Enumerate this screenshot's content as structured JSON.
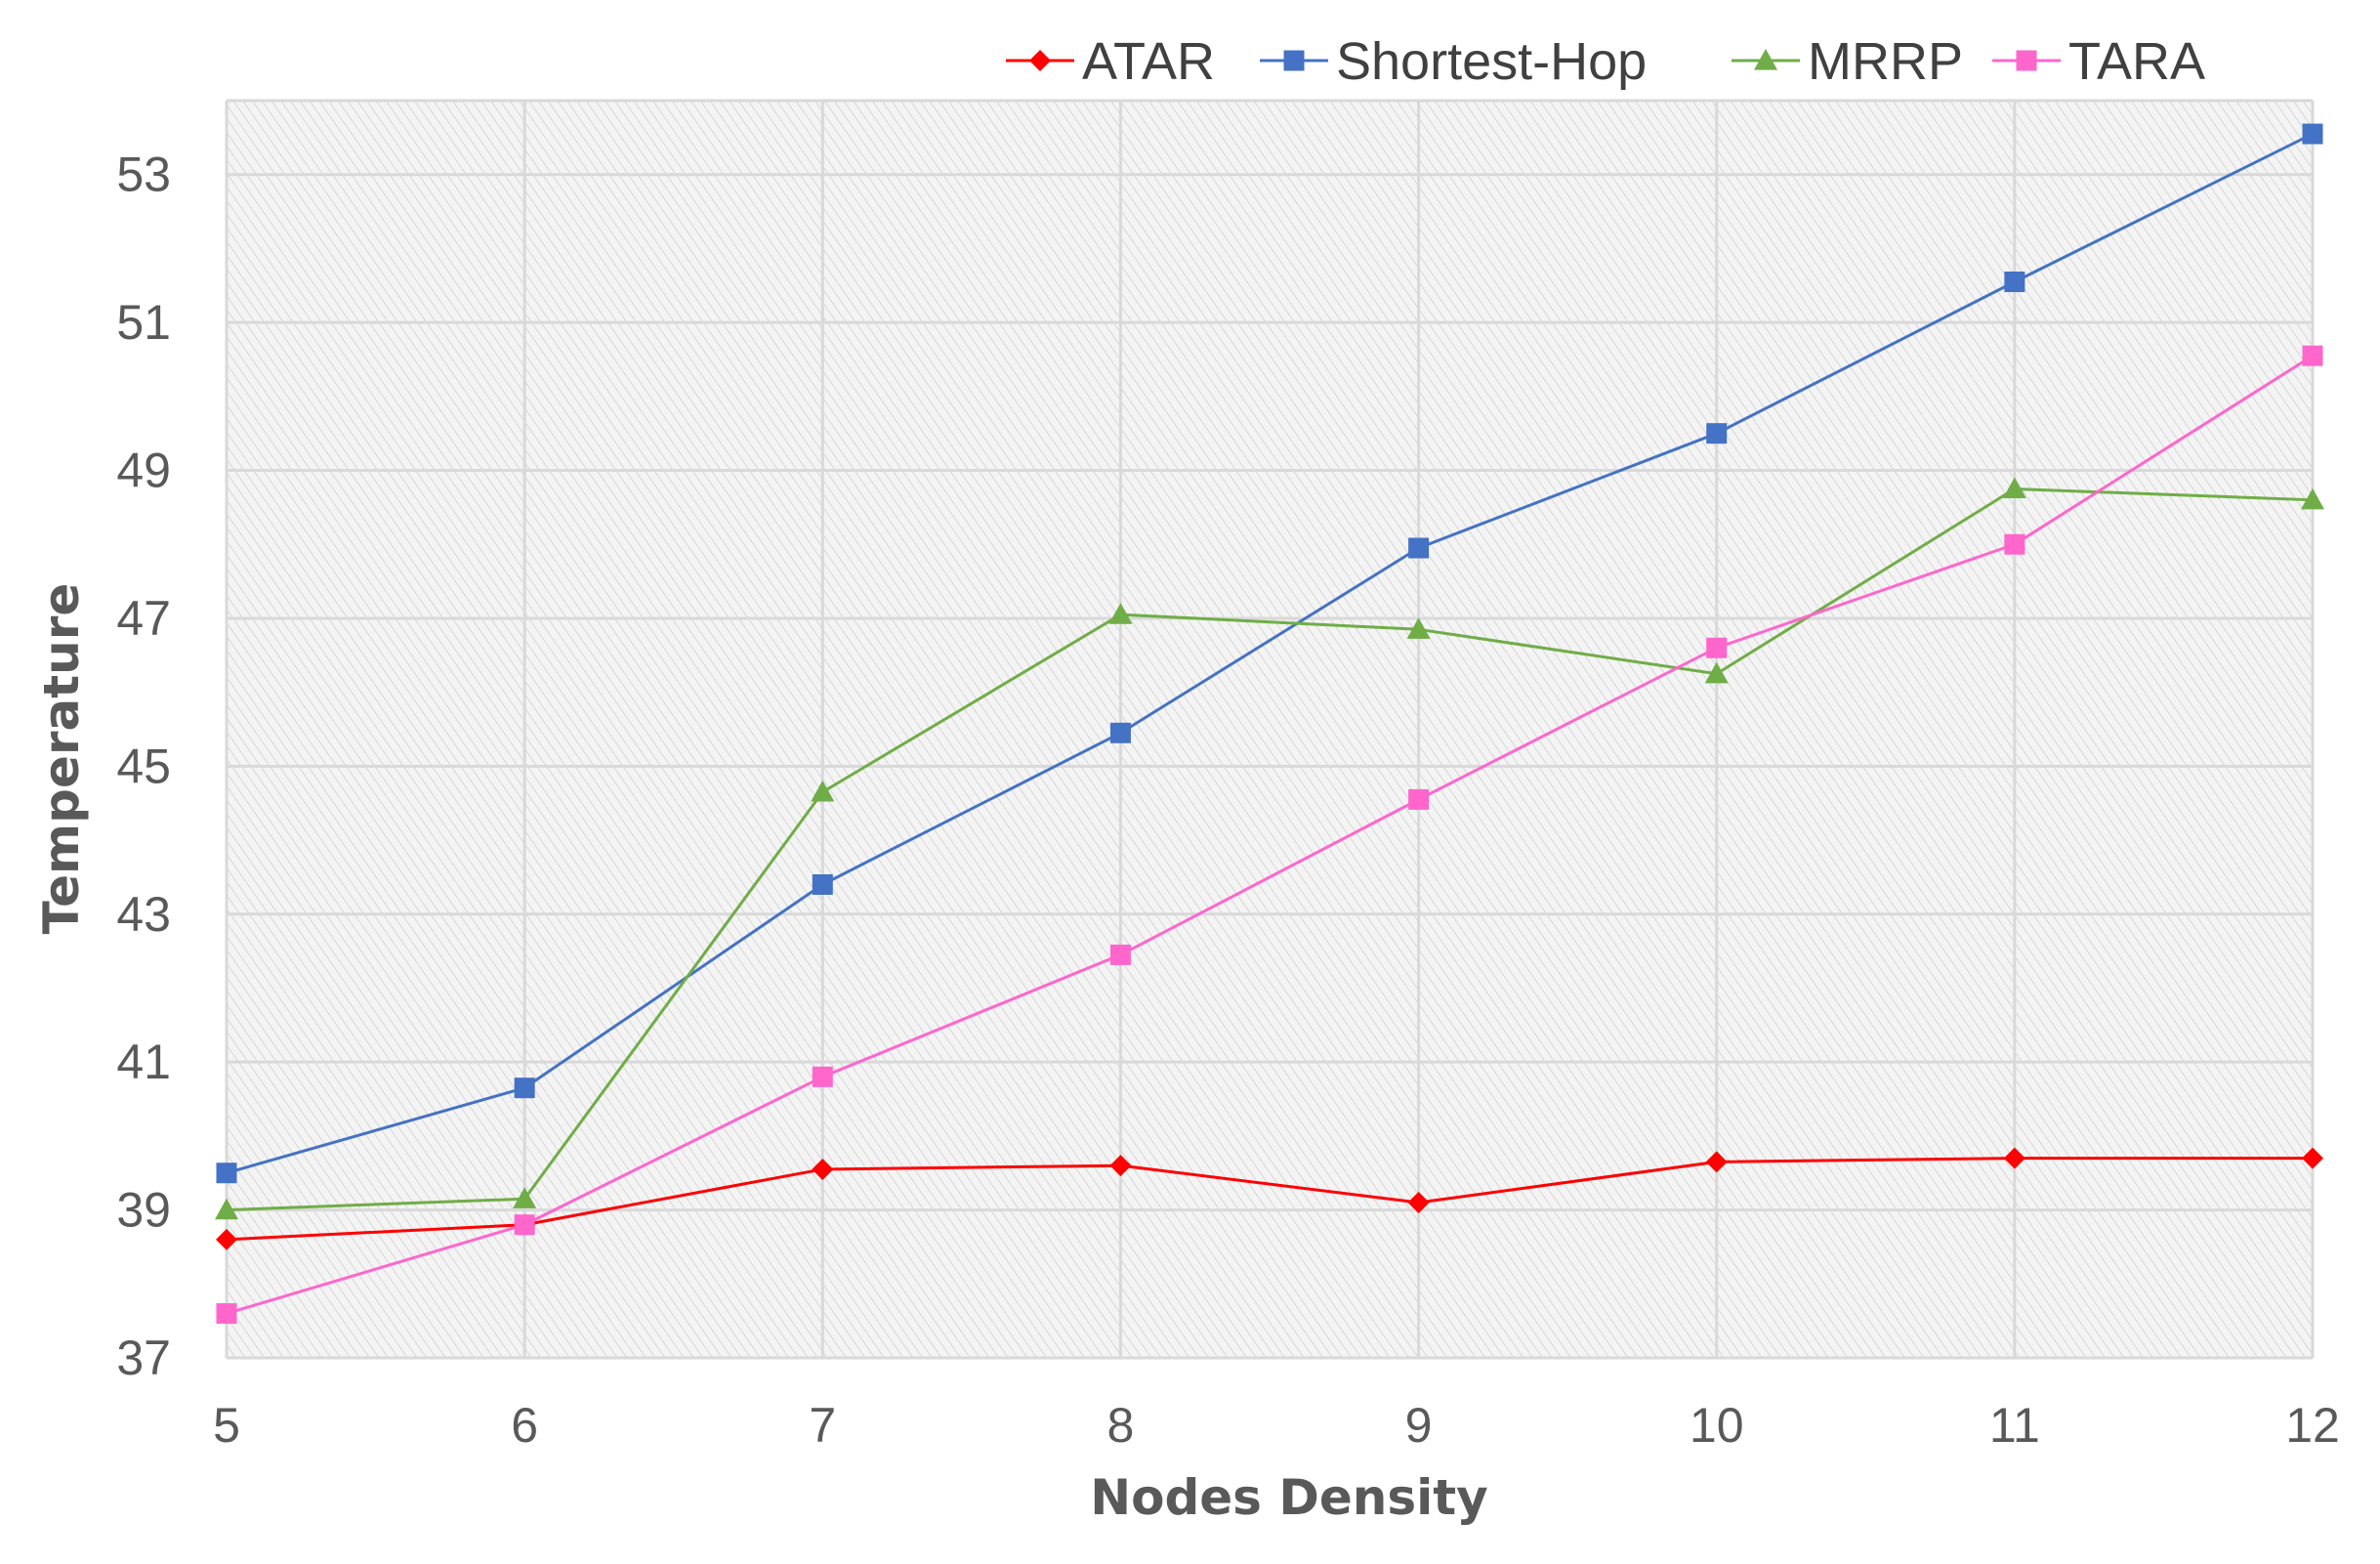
{
  "chart_data": {
    "type": "line",
    "title": "",
    "xlabel": "Nodes Density",
    "ylabel": "Temperature",
    "x": [
      5,
      6,
      7,
      8,
      9,
      10,
      11,
      12
    ],
    "x_tick_labels": [
      "5",
      "6",
      "7",
      "8",
      "9",
      "10",
      "11",
      "12"
    ],
    "xlim": [
      5,
      12
    ],
    "ylim": [
      37,
      54
    ],
    "y_ticks": [
      37,
      39,
      41,
      43,
      45,
      47,
      49,
      51,
      53
    ],
    "y_tick_labels": [
      "37",
      "39",
      "41",
      "43",
      "45",
      "47",
      "49",
      "51",
      "53"
    ],
    "grid": true,
    "legend_position": "top",
    "series": [
      {
        "name": "ATAR",
        "color": "#ff0000",
        "marker": "diamond",
        "values": [
          38.6,
          38.8,
          39.55,
          39.6,
          39.1,
          39.65,
          39.7,
          39.7
        ]
      },
      {
        "name": "Shortest-Hop",
        "color": "#4472c4",
        "marker": "square",
        "values": [
          39.5,
          40.65,
          43.4,
          45.45,
          47.95,
          49.5,
          51.55,
          53.55
        ]
      },
      {
        "name": "MRRP",
        "color": "#70ad47",
        "marker": "triangle",
        "values": [
          39.0,
          39.15,
          44.65,
          47.05,
          46.85,
          46.25,
          48.75,
          48.6
        ]
      },
      {
        "name": "TARA",
        "color": "#ff66cc",
        "marker": "square",
        "values": [
          37.6,
          38.8,
          40.8,
          42.45,
          44.55,
          46.6,
          48.0,
          50.55
        ]
      }
    ]
  }
}
